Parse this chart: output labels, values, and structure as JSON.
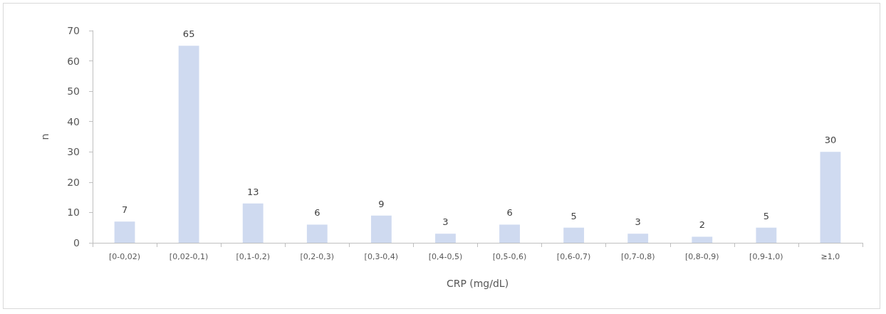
{
  "chart_data": {
    "type": "bar",
    "xlabel": "CRP (mg/dL)",
    "ylabel": "n",
    "categories": [
      "[0-0,02)",
      "[0,02-0,1)",
      "[0,1-0,2)",
      "[0,2-0,3)",
      "[0,3-0,4)",
      "[0,4-0,5)",
      "[0,5-0,6)",
      "[0,6-0,7)",
      "[0,7-0,8)",
      "[0,8-0,9)",
      "[0,9-1,0)",
      "≥1,0"
    ],
    "values": [
      7,
      65,
      13,
      6,
      9,
      3,
      6,
      5,
      3,
      2,
      5,
      30
    ],
    "color": "#cfdaf0",
    "ylim": [
      0,
      70
    ],
    "yticks": [
      0,
      10,
      20,
      30,
      40,
      50,
      60,
      70
    ],
    "grid": false,
    "data_labels": true
  }
}
